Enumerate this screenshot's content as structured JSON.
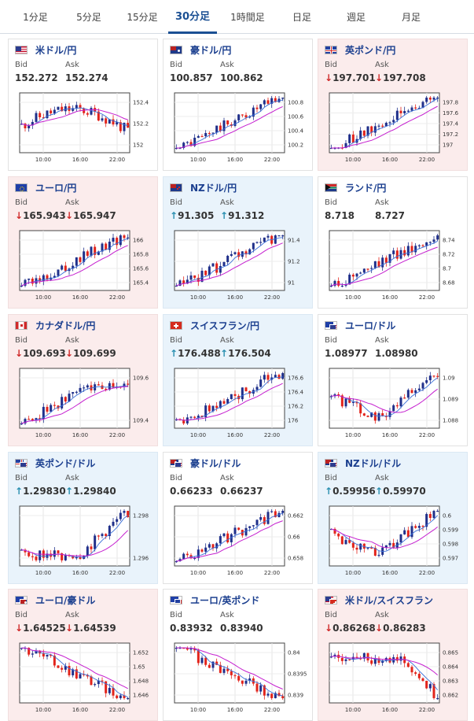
{
  "tabs": [
    {
      "label": "1分足",
      "active": false
    },
    {
      "label": "5分足",
      "active": false
    },
    {
      "label": "15分足",
      "active": false
    },
    {
      "label": "30分足",
      "active": true
    },
    {
      "label": "1時間足",
      "active": false
    },
    {
      "label": "日足",
      "active": false
    },
    {
      "label": "週足",
      "active": false
    },
    {
      "label": "月足",
      "active": false
    }
  ],
  "labels": {
    "bid": "Bid",
    "ask": "Ask"
  },
  "colors": {
    "up": "#e9f3fb",
    "down": "#fbecec",
    "candle_up": "#1f2f8a",
    "candle_down": "#e2231a",
    "ma": "#c51fcf",
    "arrow_down": "#d02a2a",
    "arrow_up": "#2a8fb0"
  },
  "cards": [
    {
      "pair": "米ドル/円",
      "flag": "us-flag",
      "dir": "flat",
      "bid": "152.272",
      "ask": "152.274",
      "arrow": "",
      "chart": {
        "x_ticks": [
          "10:00",
          "16:00",
          "22:00"
        ],
        "y_ticks": [
          "152.4",
          "152.2",
          "152"
        ],
        "trend": "mixed-peak"
      }
    },
    {
      "pair": "豪ドル/円",
      "flag": "au-flag",
      "dir": "flat",
      "bid": "100.857",
      "ask": "100.862",
      "arrow": "",
      "chart": {
        "x_ticks": [
          "10:00",
          "16:00",
          "22:00"
        ],
        "y_ticks": [
          "100.8",
          "100.6",
          "100.4",
          "100.2"
        ],
        "trend": "up"
      }
    },
    {
      "pair": "英ポンド/円",
      "flag": "uk-flag",
      "dir": "down",
      "bid": "197.701",
      "ask": "197.708",
      "arrow": "↓",
      "chart": {
        "x_ticks": [
          "10:00",
          "16:00",
          "22:00"
        ],
        "y_ticks": [
          "197.8",
          "197.6",
          "197.4",
          "197.2",
          "197"
        ],
        "trend": "up"
      }
    },
    {
      "pair": "ユーロ/円",
      "flag": "eu-flag",
      "dir": "down",
      "bid": "165.943",
      "ask": "165.947",
      "arrow": "↓",
      "chart": {
        "x_ticks": [
          "10:00",
          "16:00",
          "22:00"
        ],
        "y_ticks": [
          "166",
          "165.8",
          "165.6",
          "165.4"
        ],
        "trend": "up"
      }
    },
    {
      "pair": "NZドル/円",
      "flag": "nz-flag",
      "dir": "up",
      "bid": "91.305",
      "ask": "91.312",
      "arrow": "↑",
      "chart": {
        "x_ticks": [
          "10:00",
          "16:00",
          "22:00"
        ],
        "y_ticks": [
          "91.4",
          "91.2",
          "91"
        ],
        "trend": "up"
      }
    },
    {
      "pair": "ランド/円",
      "flag": "za-flag",
      "dir": "flat",
      "bid": "8.718",
      "ask": "8.727",
      "arrow": "",
      "chart": {
        "x_ticks": [
          "10:00",
          "16:00",
          "22:00"
        ],
        "y_ticks": [
          "8.74",
          "8.72",
          "8.7",
          "8.68"
        ],
        "trend": "up"
      }
    },
    {
      "pair": "カナダドル/円",
      "flag": "ca-flag",
      "dir": "down",
      "bid": "109.693",
      "ask": "109.699",
      "arrow": "↓",
      "chart": {
        "x_ticks": [
          "10:00",
          "16:00",
          "22:00"
        ],
        "y_ticks": [
          "109.6",
          "109.4"
        ],
        "trend": "up-flat"
      }
    },
    {
      "pair": "スイスフラン/円",
      "flag": "ch-flag",
      "dir": "up",
      "bid": "176.488",
      "ask": "176.504",
      "arrow": "↑",
      "chart": {
        "x_ticks": [
          "10:00",
          "16:00",
          "22:00"
        ],
        "y_ticks": [
          "176.6",
          "176.4",
          "176.2",
          "176"
        ],
        "trend": "up"
      }
    },
    {
      "pair": "ユーロ/ドル",
      "flag": "eu-us-flag",
      "dir": "flat",
      "bid": "1.08977",
      "ask": "1.08980",
      "arrow": "",
      "chart": {
        "x_ticks": [
          "10:00",
          "16:00",
          "22:00"
        ],
        "y_ticks": [
          "1.09",
          "1.089",
          "1.088"
        ],
        "trend": "dip-up"
      }
    },
    {
      "pair": "英ポンド/ドル",
      "flag": "uk-us-flag",
      "dir": "up",
      "bid": "1.29830",
      "ask": "1.29840",
      "arrow": "↑",
      "chart": {
        "x_ticks": [
          "10:00",
          "16:00",
          "22:00"
        ],
        "y_ticks": [
          "1.298",
          "1.296"
        ],
        "trend": "flat-up"
      }
    },
    {
      "pair": "豪ドル/ドル",
      "flag": "au-us-flag",
      "dir": "flat",
      "bid": "0.66233",
      "ask": "0.66237",
      "arrow": "",
      "chart": {
        "x_ticks": [
          "10:00",
          "16:00",
          "22:00"
        ],
        "y_ticks": [
          "0.662",
          "0.66",
          "0.658"
        ],
        "trend": "up"
      }
    },
    {
      "pair": "NZドル/ドル",
      "flag": "nz-us-flag",
      "dir": "up",
      "bid": "0.59956",
      "ask": "0.59970",
      "arrow": "↑",
      "chart": {
        "x_ticks": [
          "10:00",
          "16:00",
          "22:00"
        ],
        "y_ticks": [
          "0.6",
          "0.599",
          "0.598",
          "0.597"
        ],
        "trend": "dip-up"
      }
    },
    {
      "pair": "ユーロ/豪ドル",
      "flag": "eu-au-flag",
      "dir": "down",
      "bid": "1.64525",
      "ask": "1.64539",
      "arrow": "↓",
      "chart": {
        "x_ticks": [
          "10:00",
          "16:00",
          "22:00"
        ],
        "y_ticks": [
          "1.652",
          "1.65",
          "1.648",
          "1.646"
        ],
        "trend": "down"
      }
    },
    {
      "pair": "ユーロ/英ポンド",
      "flag": "eu-uk-flag",
      "dir": "flat",
      "bid": "0.83932",
      "ask": "0.83940",
      "arrow": "",
      "chart": {
        "x_ticks": [
          "10:00",
          "16:00",
          "22:00"
        ],
        "y_ticks": [
          "0.84",
          "0.8395",
          "0.839"
        ],
        "trend": "down"
      }
    },
    {
      "pair": "米ドル/スイスフラン",
      "flag": "us-ch-flag",
      "dir": "down",
      "bid": "0.86268",
      "ask": "0.86283",
      "arrow": "↓",
      "chart": {
        "x_ticks": [
          "10:00",
          "16:00",
          "22:00"
        ],
        "y_ticks": [
          "0.865",
          "0.864",
          "0.863",
          "0.862"
        ],
        "trend": "down-late"
      }
    }
  ]
}
